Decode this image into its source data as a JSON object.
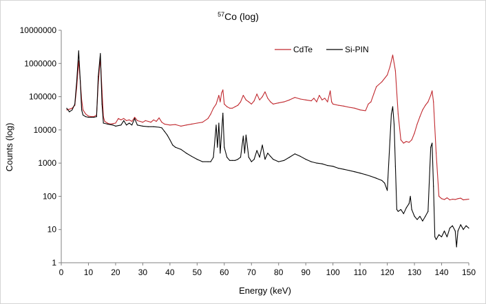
{
  "chart_data": {
    "type": "line",
    "title_sup": "57",
    "title_main": "Co (log)",
    "xlabel": "Energy (keV)",
    "ylabel": "Counts (log)",
    "xlim": [
      0,
      150
    ],
    "ylim": [
      1,
      10000000
    ],
    "y_scale": "log",
    "grid": false,
    "legend_position": "top-right",
    "x_ticks": [
      "0",
      "10",
      "20",
      "30",
      "40",
      "50",
      "60",
      "70",
      "80",
      "90",
      "100",
      "110",
      "120",
      "130",
      "140",
      "150"
    ],
    "y_ticks": [
      "1",
      "10",
      "100",
      "1000",
      "10000",
      "100000",
      "1000000",
      "10000000"
    ],
    "series": [
      {
        "name": "CdTe",
        "color": "#c0272d",
        "points": [
          [
            2,
            40000
          ],
          [
            3,
            42000
          ],
          [
            4,
            45000
          ],
          [
            5,
            55000
          ],
          [
            5.7,
            200000
          ],
          [
            6.4,
            1200000
          ],
          [
            7,
            300000
          ],
          [
            7.5,
            80000
          ],
          [
            8,
            40000
          ],
          [
            9,
            30000
          ],
          [
            10,
            26000
          ],
          [
            11,
            25000
          ],
          [
            12,
            25000
          ],
          [
            13,
            28000
          ],
          [
            13.6,
            250000
          ],
          [
            14.4,
            1500000
          ],
          [
            15,
            150000
          ],
          [
            15.5,
            25000
          ],
          [
            16,
            18000
          ],
          [
            17,
            16000
          ],
          [
            18,
            15000
          ],
          [
            19,
            15500
          ],
          [
            20,
            16000
          ],
          [
            21,
            22000
          ],
          [
            22,
            20000
          ],
          [
            23,
            22000
          ],
          [
            24,
            19000
          ],
          [
            25,
            20000
          ],
          [
            26,
            18000
          ],
          [
            27,
            24000
          ],
          [
            28,
            19000
          ],
          [
            29,
            18000
          ],
          [
            30,
            17000
          ],
          [
            31,
            19000
          ],
          [
            32,
            18000
          ],
          [
            33,
            17000
          ],
          [
            34,
            20000
          ],
          [
            35,
            18000
          ],
          [
            36,
            23000
          ],
          [
            37,
            17000
          ],
          [
            38,
            15000
          ],
          [
            40,
            14000
          ],
          [
            42,
            14500
          ],
          [
            44,
            13000
          ],
          [
            46,
            14000
          ],
          [
            48,
            15000
          ],
          [
            50,
            16000
          ],
          [
            52,
            17000
          ],
          [
            54,
            22000
          ],
          [
            55,
            30000
          ],
          [
            56,
            45000
          ],
          [
            57,
            60000
          ],
          [
            58,
            110000
          ],
          [
            58.5,
            70000
          ],
          [
            59,
            130000
          ],
          [
            59.5,
            160000
          ],
          [
            60,
            60000
          ],
          [
            61,
            50000
          ],
          [
            62,
            45000
          ],
          [
            63,
            45000
          ],
          [
            64,
            50000
          ],
          [
            65,
            55000
          ],
          [
            66,
            70000
          ],
          [
            67,
            110000
          ],
          [
            68,
            80000
          ],
          [
            69,
            70000
          ],
          [
            70,
            60000
          ],
          [
            71,
            75000
          ],
          [
            72,
            120000
          ],
          [
            73,
            80000
          ],
          [
            74,
            100000
          ],
          [
            75,
            140000
          ],
          [
            76,
            90000
          ],
          [
            77,
            70000
          ],
          [
            78,
            60000
          ],
          [
            80,
            65000
          ],
          [
            82,
            70000
          ],
          [
            84,
            80000
          ],
          [
            86,
            95000
          ],
          [
            88,
            85000
          ],
          [
            90,
            80000
          ],
          [
            92,
            75000
          ],
          [
            93,
            90000
          ],
          [
            94,
            70000
          ],
          [
            95,
            110000
          ],
          [
            96,
            80000
          ],
          [
            97,
            90000
          ],
          [
            98,
            70000
          ],
          [
            99,
            150000
          ],
          [
            99.5,
            70000
          ],
          [
            100,
            60000
          ],
          [
            102,
            55000
          ],
          [
            104,
            52000
          ],
          [
            106,
            48000
          ],
          [
            108,
            45000
          ],
          [
            110,
            40000
          ],
          [
            112,
            38000
          ],
          [
            113,
            60000
          ],
          [
            114,
            70000
          ],
          [
            115,
            120000
          ],
          [
            116,
            200000
          ],
          [
            118,
            280000
          ],
          [
            120,
            450000
          ],
          [
            121,
            800000
          ],
          [
            122,
            1800000
          ],
          [
            123,
            600000
          ],
          [
            124,
            30000
          ],
          [
            125,
            5000
          ],
          [
            126,
            4000
          ],
          [
            127,
            4500
          ],
          [
            128,
            4200
          ],
          [
            129,
            5000
          ],
          [
            130,
            8000
          ],
          [
            131,
            15000
          ],
          [
            132,
            25000
          ],
          [
            133,
            40000
          ],
          [
            134,
            55000
          ],
          [
            135,
            70000
          ],
          [
            136,
            110000
          ],
          [
            136.5,
            150000
          ],
          [
            137,
            70000
          ],
          [
            138,
            2000
          ],
          [
            139,
            100
          ],
          [
            140,
            85
          ],
          [
            141,
            80
          ],
          [
            142,
            90
          ],
          [
            143,
            78
          ],
          [
            144,
            82
          ],
          [
            145,
            80
          ],
          [
            146,
            85
          ],
          [
            147,
            88
          ],
          [
            148,
            78
          ],
          [
            149,
            80
          ],
          [
            150,
            82
          ]
        ]
      },
      {
        "name": "Si-PIN",
        "color": "#000000",
        "points": [
          [
            2,
            45000
          ],
          [
            3,
            35000
          ],
          [
            4,
            40000
          ],
          [
            5,
            60000
          ],
          [
            5.7,
            300000
          ],
          [
            6.4,
            2400000
          ],
          [
            7,
            300000
          ],
          [
            7.5,
            40000
          ],
          [
            8,
            28000
          ],
          [
            9,
            25000
          ],
          [
            10,
            24000
          ],
          [
            11,
            24000
          ],
          [
            12,
            24000
          ],
          [
            13,
            25000
          ],
          [
            13.6,
            400000
          ],
          [
            14.4,
            2000000
          ],
          [
            15,
            60000
          ],
          [
            15.5,
            16000
          ],
          [
            17,
            15000
          ],
          [
            19,
            14000
          ],
          [
            20,
            13000
          ],
          [
            22,
            14000
          ],
          [
            23,
            19000
          ],
          [
            24,
            14000
          ],
          [
            25,
            16000
          ],
          [
            26,
            14000
          ],
          [
            27,
            22000
          ],
          [
            28,
            14000
          ],
          [
            30,
            13000
          ],
          [
            32,
            12500
          ],
          [
            34,
            12500
          ],
          [
            36,
            12000
          ],
          [
            37,
            11500
          ],
          [
            38,
            9000
          ],
          [
            39,
            7000
          ],
          [
            40,
            5000
          ],
          [
            41,
            3500
          ],
          [
            42,
            3000
          ],
          [
            44,
            2600
          ],
          [
            46,
            2000
          ],
          [
            48,
            1600
          ],
          [
            50,
            1300
          ],
          [
            52,
            1100
          ],
          [
            54,
            1100
          ],
          [
            55,
            1100
          ],
          [
            56,
            1500
          ],
          [
            57,
            14000
          ],
          [
            57.5,
            3000
          ],
          [
            58,
            16000
          ],
          [
            58.5,
            2000
          ],
          [
            59.5,
            32000
          ],
          [
            60,
            3000
          ],
          [
            61,
            1500
          ],
          [
            62,
            1200
          ],
          [
            63,
            1200
          ],
          [
            64,
            1200
          ],
          [
            65,
            1300
          ],
          [
            66,
            1500
          ],
          [
            67,
            6500
          ],
          [
            67.5,
            2000
          ],
          [
            68,
            7000
          ],
          [
            69,
            1500
          ],
          [
            70,
            1100
          ],
          [
            71,
            1300
          ],
          [
            72,
            2400
          ],
          [
            73,
            1500
          ],
          [
            74,
            3500
          ],
          [
            75,
            1300
          ],
          [
            76,
            2000
          ],
          [
            77,
            1600
          ],
          [
            78,
            1300
          ],
          [
            80,
            1100
          ],
          [
            82,
            1200
          ],
          [
            84,
            1500
          ],
          [
            86,
            1900
          ],
          [
            88,
            1600
          ],
          [
            90,
            1300
          ],
          [
            92,
            1100
          ],
          [
            94,
            1000
          ],
          [
            96,
            950
          ],
          [
            98,
            850
          ],
          [
            100,
            800
          ],
          [
            102,
            700
          ],
          [
            104,
            650
          ],
          [
            106,
            600
          ],
          [
            108,
            550
          ],
          [
            110,
            500
          ],
          [
            112,
            450
          ],
          [
            114,
            400
          ],
          [
            116,
            350
          ],
          [
            118,
            300
          ],
          [
            119,
            250
          ],
          [
            120,
            150
          ],
          [
            121,
            5000
          ],
          [
            121.5,
            30000
          ],
          [
            122,
            50000
          ],
          [
            122.5,
            15000
          ],
          [
            123,
            800
          ],
          [
            123.5,
            40
          ],
          [
            124,
            35
          ],
          [
            125,
            40
          ],
          [
            126,
            30
          ],
          [
            127,
            45
          ],
          [
            128,
            60
          ],
          [
            128.5,
            100
          ],
          [
            129,
            40
          ],
          [
            130,
            25
          ],
          [
            131,
            20
          ],
          [
            132,
            25
          ],
          [
            133,
            18
          ],
          [
            134,
            25
          ],
          [
            135,
            35
          ],
          [
            136,
            3000
          ],
          [
            136.5,
            4000
          ],
          [
            137,
            200
          ],
          [
            137.5,
            6
          ],
          [
            138,
            5
          ],
          [
            139,
            7
          ],
          [
            140,
            6
          ],
          [
            141,
            9
          ],
          [
            142,
            6
          ],
          [
            143,
            11
          ],
          [
            144,
            13
          ],
          [
            145,
            9
          ],
          [
            145.5,
            3
          ],
          [
            146,
            9
          ],
          [
            147,
            14
          ],
          [
            148,
            10
          ],
          [
            149,
            13
          ],
          [
            150,
            11
          ]
        ]
      }
    ]
  }
}
